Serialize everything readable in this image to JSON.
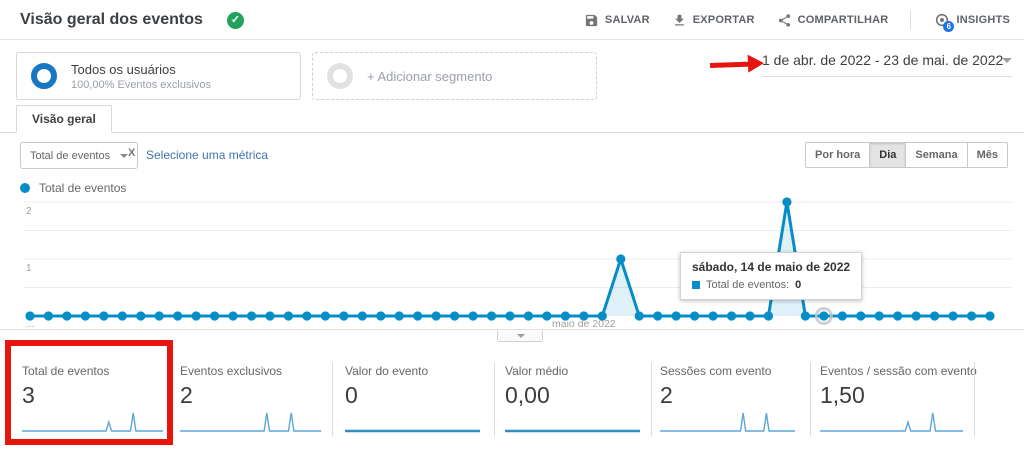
{
  "header": {
    "title": "Visão geral dos eventos",
    "verified_check": "✓",
    "actions": [
      {
        "label": "SALVAR",
        "icon": "save-icon"
      },
      {
        "label": "EXPORTAR",
        "icon": "download-icon"
      },
      {
        "label": "COMPARTILHAR",
        "icon": "share-icon"
      },
      {
        "label": "INSIGHTS",
        "icon": "insights-icon",
        "badge": "6"
      }
    ]
  },
  "segments": {
    "all_users": {
      "title": "Todos os usuários",
      "subtitle": "100,00% Eventos exclusivos"
    },
    "add_label": "+ Adicionar segmento"
  },
  "date_range": {
    "label": "1 de abr. de 2022 - 23 de mai. de 2022"
  },
  "tabs": [
    {
      "label": "Visão geral"
    }
  ],
  "toolbar": {
    "metric_dropdown": "Total de eventos",
    "vs_label": "X",
    "select_metric": "Selecione uma métrica",
    "granularity": [
      "Por hora",
      "Dia",
      "Semana",
      "Mês"
    ],
    "granularity_active": "Dia"
  },
  "legend": {
    "label": "Total de eventos"
  },
  "chart_data": {
    "type": "line",
    "title": "Total de eventos",
    "x_unit": "day",
    "x_start": "2022-04-01",
    "x_end": "2022-05-23",
    "values": [
      0,
      0,
      0,
      0,
      0,
      0,
      0,
      0,
      0,
      0,
      0,
      0,
      0,
      0,
      0,
      0,
      0,
      0,
      0,
      0,
      0,
      0,
      0,
      0,
      0,
      0,
      0,
      0,
      0,
      0,
      0,
      0,
      1,
      0,
      0,
      0,
      0,
      0,
      0,
      0,
      0,
      2,
      0,
      0,
      0,
      0,
      0,
      0,
      0,
      0,
      0,
      0,
      0
    ],
    "ylim": [
      0,
      2.1
    ],
    "y_ticks": [
      1,
      2
    ],
    "y_gridlines": [
      0.5,
      1,
      1.5,
      2
    ],
    "x_ticks": [
      {
        "index": 0,
        "label": "..."
      },
      {
        "index": 30,
        "label": "maio de 2022"
      }
    ],
    "series_color": "#058dc7",
    "hover_index": 43,
    "hover_label": "sábado, 14 de maio de 2022",
    "hover_value": 0,
    "legend_position": "top-left",
    "grid": true
  },
  "tooltip": {
    "title": "sábado, 14 de maio de 2022",
    "label": "Total de eventos:",
    "value": "0"
  },
  "scorecards": [
    {
      "label": "Total de eventos",
      "value": "3",
      "spike_indices": [
        32,
        41
      ],
      "spike_values": [
        1,
        2
      ]
    },
    {
      "label": "Eventos exclusivos",
      "value": "2",
      "spike_indices": [
        32,
        41
      ],
      "spike_values": [
        1,
        1
      ]
    },
    {
      "label": "Valor do evento",
      "value": "0",
      "spike_indices": [],
      "spike_values": []
    },
    {
      "label": "Valor médio",
      "value": "0,00",
      "spike_indices": [],
      "spike_values": []
    },
    {
      "label": "Sessões com evento",
      "value": "2",
      "spike_indices": [
        32,
        41
      ],
      "spike_values": [
        1,
        1
      ]
    },
    {
      "label": "Eventos / sessão com evento",
      "value": "1,50",
      "spike_indices": [
        32,
        41
      ],
      "spike_values": [
        1,
        2
      ]
    }
  ],
  "annotations": {
    "arrow_color": "#e8150f",
    "highlight_color": "#e8150f",
    "highlighted_card": "Total de eventos"
  },
  "colors": {
    "series_blue": "#058dc7",
    "spark_blue": "#5aa7d8",
    "verified_green": "#23a25e",
    "insights_badge_blue": "#1a73e8",
    "link_blue": "#4272b0"
  }
}
